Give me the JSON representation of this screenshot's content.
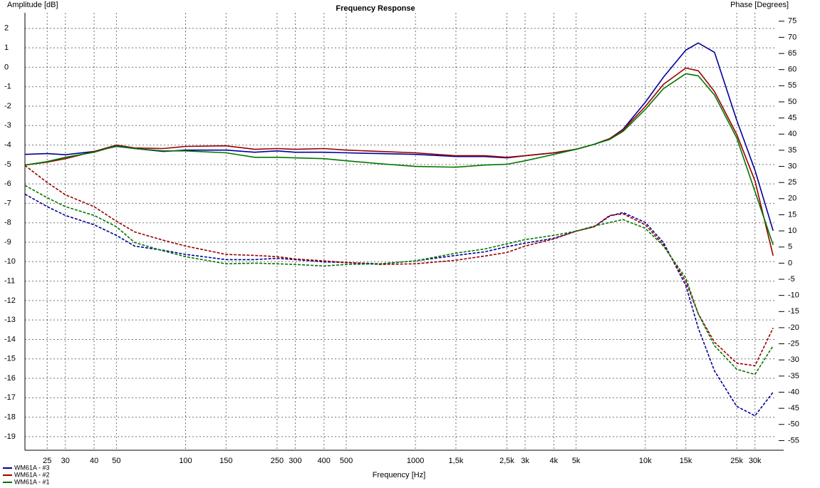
{
  "chart_data": {
    "type": "line",
    "title": "Frequency Response",
    "ylabel": "Amplitude [dB]",
    "y2label": "Phase [Degrees]",
    "xlabel": "Frequency [Hz]",
    "xscale": "log",
    "grid": true,
    "legend": "bottom-left",
    "x": [
      20,
      25,
      30,
      40,
      50,
      60,
      80,
      100,
      150,
      200,
      250,
      300,
      400,
      500,
      700,
      1000,
      1500,
      2000,
      2500,
      3000,
      4000,
      5000,
      6000,
      7000,
      8000,
      10000,
      12000,
      15000,
      17000,
      20000,
      25000,
      30000,
      36000
    ],
    "xlim": [
      20,
      40000
    ],
    "xticks": [
      25,
      30,
      40,
      50,
      100,
      150,
      250,
      300,
      400,
      500,
      1000,
      {
        "value": 1500,
        "label": "1,5k"
      },
      {
        "value": 2500,
        "label": "2,5k"
      },
      {
        "value": 3000,
        "label": "3k"
      },
      {
        "value": 4000,
        "label": "4k"
      },
      {
        "value": 5000,
        "label": "5k"
      },
      {
        "value": 10000,
        "label": "10k"
      },
      {
        "value": 15000,
        "label": "15k"
      },
      {
        "value": 25000,
        "label": "25k"
      },
      {
        "value": 30000,
        "label": "30k"
      }
    ],
    "ylim": [
      -19.7,
      2.8
    ],
    "yticks": [
      2,
      1,
      0,
      -1,
      -2,
      -3,
      -4,
      -5,
      -6,
      -7,
      -8,
      -9,
      -10,
      -11,
      -12,
      -13,
      -14,
      -15,
      -16,
      -17,
      -18,
      -19
    ],
    "y2lim": [
      -58,
      77.6
    ],
    "y2ticks": [
      75,
      70,
      65,
      60,
      55,
      50,
      45,
      40,
      35,
      30,
      25,
      20,
      15,
      10,
      5,
      0,
      -5,
      -10,
      -15,
      -20,
      -25,
      -30,
      -35,
      -40,
      -45,
      -50,
      -55
    ],
    "series": [
      {
        "name": "WM61A - #3",
        "color": "#000099",
        "style": "solid",
        "values": [
          -4.48,
          -4.44,
          -4.5,
          -4.33,
          -4.07,
          -4.18,
          -4.33,
          -4.26,
          -4.26,
          -4.37,
          -4.3,
          -4.37,
          -4.37,
          -4.4,
          -4.44,
          -4.48,
          -4.59,
          -4.59,
          -4.66,
          -4.55,
          -4.4,
          -4.22,
          -3.96,
          -3.67,
          -3.19,
          -1.8,
          -0.51,
          0.88,
          1.25,
          0.77,
          -2.72,
          -5.29,
          -8.41
        ]
      },
      {
        "name": "WM61A - #2",
        "color": "#990000",
        "style": "solid",
        "values": [
          -5.03,
          -4.88,
          -4.7,
          -4.33,
          -4.0,
          -4.15,
          -4.18,
          -4.07,
          -4.04,
          -4.22,
          -4.18,
          -4.22,
          -4.18,
          -4.26,
          -4.33,
          -4.4,
          -4.55,
          -4.55,
          -4.63,
          -4.55,
          -4.4,
          -4.22,
          -3.96,
          -3.67,
          -3.23,
          -2.02,
          -0.88,
          -0.04,
          -0.18,
          -1.25,
          -3.45,
          -5.84,
          -9.69
        ]
      },
      {
        "name": "WM61A - #1",
        "color": "#007700",
        "style": "solid",
        "values": [
          -5.03,
          -4.85,
          -4.63,
          -4.37,
          -4.04,
          -4.18,
          -4.3,
          -4.3,
          -4.4,
          -4.63,
          -4.63,
          -4.66,
          -4.7,
          -4.81,
          -4.96,
          -5.1,
          -5.14,
          -5.03,
          -4.99,
          -4.81,
          -4.48,
          -4.22,
          -3.96,
          -3.71,
          -3.3,
          -2.17,
          -1.1,
          -0.33,
          -0.44,
          -1.43,
          -3.63,
          -6.39,
          -9.14
        ]
      },
      {
        "color": "#000099",
        "style": "dashed",
        "axis": "y2",
        "values": [
          21.4,
          17.5,
          14.8,
          11.9,
          8.6,
          5.3,
          4.0,
          2.7,
          1.1,
          1.1,
          1.5,
          1.1,
          0.4,
          0.2,
          -0.2,
          0.7,
          2.4,
          3.5,
          5.1,
          6.2,
          7.7,
          9.9,
          11.3,
          14.6,
          15.7,
          12.6,
          6.4,
          -6.9,
          -20.1,
          -33.4,
          -44.4,
          -47.3,
          -40.0
        ]
      },
      {
        "color": "#990000",
        "style": "dashed",
        "axis": "y2",
        "values": [
          30.3,
          25.0,
          21.2,
          17.5,
          13.0,
          9.7,
          7.1,
          5.3,
          2.7,
          2.4,
          2.0,
          1.3,
          0.7,
          0.2,
          -0.4,
          -0.2,
          0.9,
          2.2,
          3.3,
          5.3,
          7.5,
          9.9,
          11.3,
          14.8,
          15.3,
          11.9,
          5.7,
          -5.7,
          -15.7,
          -24.5,
          -31.0,
          -31.8,
          -20.1
        ]
      },
      {
        "color": "#007700",
        "style": "dashed",
        "axis": "y2",
        "values": [
          24.1,
          20.3,
          17.5,
          14.8,
          11.3,
          6.4,
          3.8,
          2.0,
          -0.2,
          0,
          -0.2,
          -0.4,
          -0.9,
          -0.4,
          -0.2,
          0.7,
          3.1,
          4.4,
          6.0,
          7.3,
          8.6,
          9.9,
          11.5,
          12.6,
          13.5,
          10.8,
          5.3,
          -4.6,
          -15.7,
          -25.6,
          -32.9,
          -34.5,
          -25.6
        ]
      }
    ]
  }
}
